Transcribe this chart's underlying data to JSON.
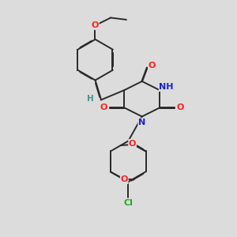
{
  "background_color": "#dcdcdc",
  "bond_color": "#2a2a2a",
  "atom_colors": {
    "O": "#ff2020",
    "N": "#2020cc",
    "Cl": "#22aa22",
    "H": "#4a9090",
    "C": "#2a2a2a"
  },
  "figsize": [
    3.0,
    3.0
  ],
  "dpi": 100
}
